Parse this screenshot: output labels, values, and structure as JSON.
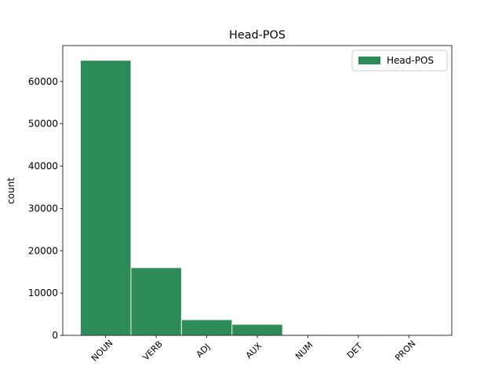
{
  "chart_data": {
    "type": "bar",
    "title": "Head-POS",
    "ylabel": "count",
    "categories": [
      "NOUN",
      "VERB",
      "ADJ",
      "AUX",
      "NUM",
      "DET",
      "PRON"
    ],
    "series": [
      {
        "name": "Head-POS",
        "color": "#2e8b57",
        "values": [
          65000,
          16000,
          3700,
          2600,
          100,
          50,
          20
        ]
      }
    ],
    "ylim": [
      0,
      68500
    ],
    "yticks": [
      0,
      10000,
      20000,
      30000,
      40000,
      50000,
      60000
    ],
    "legend": "upper right"
  }
}
